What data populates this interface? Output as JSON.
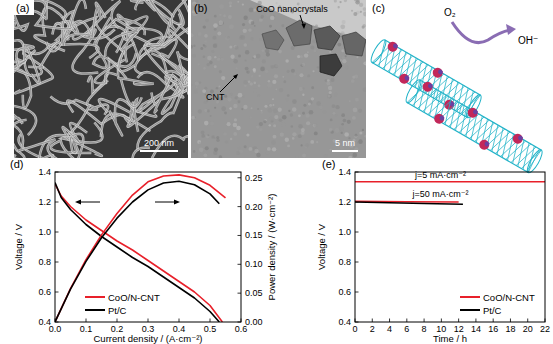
{
  "panels": [
    {
      "label": "(a)",
      "scale_bar": "200 nm"
    },
    {
      "label": "(b)",
      "scale_bar": "5 nm",
      "annotations": [
        "CoO nanocrystals",
        "CNT"
      ]
    },
    {
      "label": "(c)",
      "annotations": [
        "O₂",
        "OH⁻"
      ]
    }
  ],
  "chart_data": [
    {
      "type": "line",
      "title": "(d)",
      "x_label": "Current density / (A·cm⁻²)",
      "y_label": "Voltage / V",
      "y2_label": "Power density / (W·cm⁻²)",
      "xlim": [
        0,
        0.6
      ],
      "xticks": [
        {
          "value": 0,
          "label": "0.0"
        },
        0.1,
        0.2,
        0.3,
        0.4,
        0.5,
        0.6
      ],
      "ylim": [
        0.4,
        1.4
      ],
      "yticks": [
        0.4,
        0.6,
        0.8,
        {
          "value": 1,
          "label": "1.0"
        },
        1.2,
        1.4
      ],
      "y2lim": [
        0,
        0.26
      ],
      "y2ticks": [
        {
          "value": 0,
          "label": "0.00"
        },
        0.05,
        {
          "value": 0.1,
          "label": "0.10"
        },
        0.15,
        {
          "value": 0.2,
          "label": "0.20"
        },
        0.25
      ],
      "legend": "lower left",
      "series": [
        {
          "name": "CoO/N-CNT",
          "color": "#e8202a",
          "x": [
            0,
            0.02,
            0.05,
            0.1,
            0.15,
            0.2,
            0.25,
            0.3,
            0.35,
            0.4,
            0.45,
            0.5,
            0.54
          ],
          "values": [
            1.32,
            1.24,
            1.17,
            1.08,
            1.01,
            0.94,
            0.88,
            0.81,
            0.74,
            0.67,
            0.6,
            0.51,
            0.4
          ]
        },
        {
          "name": "Pt/C",
          "color": "#000000",
          "x": [
            0,
            0.02,
            0.05,
            0.1,
            0.15,
            0.2,
            0.25,
            0.3,
            0.35,
            0.4,
            0.45,
            0.5,
            0.53
          ],
          "values": [
            1.33,
            1.23,
            1.15,
            1.05,
            0.97,
            0.9,
            0.83,
            0.77,
            0.7,
            0.63,
            0.56,
            0.47,
            0.4
          ]
        },
        {
          "name": "CoO/N-CNT",
          "color": "#e8202a",
          "axis": "y2",
          "x": [
            0,
            0.05,
            0.1,
            0.15,
            0.2,
            0.25,
            0.3,
            0.35,
            0.4,
            0.45,
            0.5,
            0.55
          ],
          "values": [
            0,
            0.058,
            0.108,
            0.151,
            0.188,
            0.22,
            0.243,
            0.253,
            0.255,
            0.25,
            0.237,
            0.215
          ]
        },
        {
          "name": "Pt/C",
          "color": "#000000",
          "axis": "y2",
          "x": [
            0,
            0.05,
            0.1,
            0.15,
            0.2,
            0.25,
            0.3,
            0.35,
            0.4,
            0.45,
            0.5,
            0.53
          ],
          "values": [
            0,
            0.057,
            0.105,
            0.146,
            0.18,
            0.208,
            0.229,
            0.241,
            0.244,
            0.238,
            0.222,
            0.205
          ]
        }
      ]
    },
    {
      "type": "line",
      "title": "(e)",
      "x_label": "Time / h",
      "y_label": "Voltage / V",
      "xlim": [
        0,
        22
      ],
      "xticks": [
        0,
        2,
        4,
        6,
        8,
        10,
        12,
        14,
        16,
        18,
        20,
        22
      ],
      "ylim": [
        0.4,
        1.4
      ],
      "yticks": [
        0.4,
        0.6,
        0.8,
        {
          "value": 1,
          "label": "1.0"
        },
        1.2,
        1.4
      ],
      "legend": "lower right",
      "annotations": [
        "j=5 mA·cm⁻²",
        "j=50 mA·cm⁻²"
      ],
      "series": [
        {
          "name": "CoO/N-CNT",
          "color": "#e8202a",
          "x": [
            0,
            5,
            10,
            15,
            20,
            22
          ],
          "values": [
            1.335,
            1.335,
            1.335,
            1.335,
            1.335,
            1.335
          ]
        },
        {
          "name": "CoO/N-CNT",
          "color": "#e8202a",
          "x": [
            0,
            6,
            12
          ],
          "values": [
            1.205,
            1.202,
            1.2
          ]
        },
        {
          "name": "Pt/C",
          "color": "#000000",
          "x": [
            0,
            4,
            8,
            12.5
          ],
          "values": [
            1.2,
            1.195,
            1.19,
            1.185
          ]
        }
      ]
    }
  ]
}
